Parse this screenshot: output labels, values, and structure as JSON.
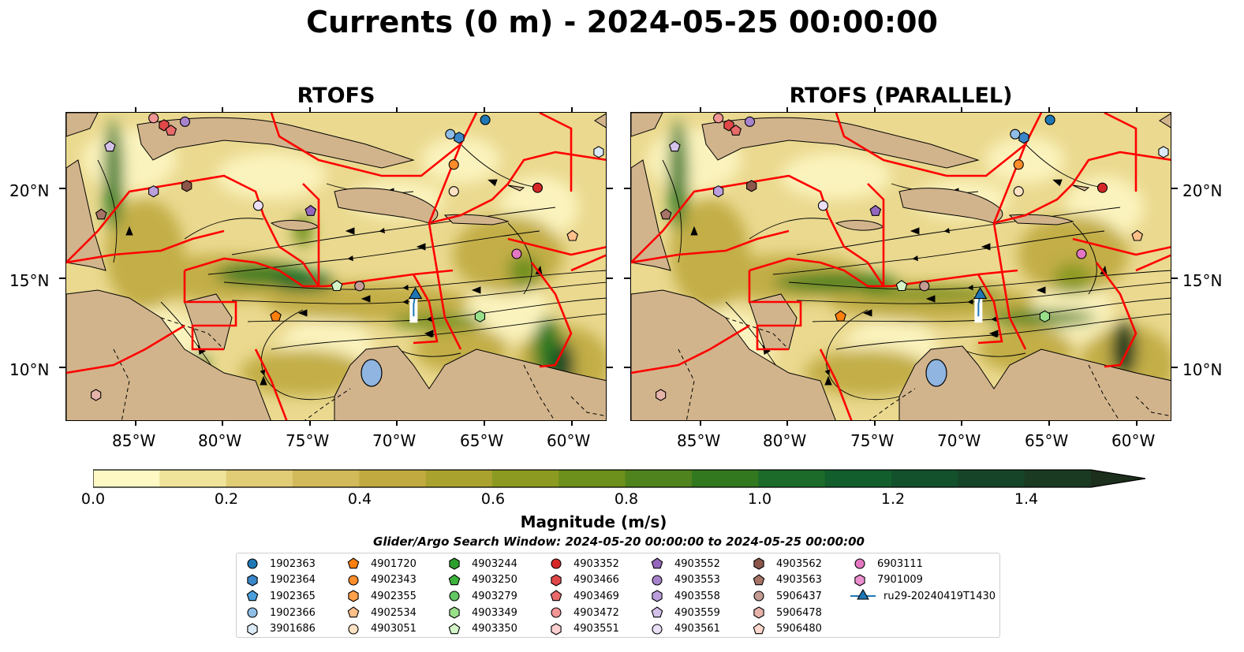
{
  "title": "Currents (0 m) - 2024-05-25 00:00:00",
  "panels": [
    {
      "title": "RTOFS"
    },
    {
      "title": "RTOFS (PARALLEL)"
    }
  ],
  "map_extent": {
    "lon": [
      -89,
      -58
    ],
    "lat": [
      7,
      24.3
    ]
  },
  "lat_labels": [
    "20°N",
    "15°N",
    "10°N"
  ],
  "lon_labels": [
    "85°W",
    "80°W",
    "75°W",
    "70°W",
    "65°W",
    "60°W"
  ],
  "colorbar": {
    "label": "Magnitude (m/s)",
    "ticks": [
      "0.0",
      "0.2",
      "0.4",
      "0.6",
      "0.8",
      "1.0",
      "1.2",
      "1.4"
    ],
    "range": [
      0,
      1.5
    ],
    "extend": "max",
    "colors": [
      "#fdf8c4",
      "#f0e49b",
      "#e2cd77",
      "#d2b959",
      "#c1ab41",
      "#a9a22f",
      "#8c9a22",
      "#6d8f1c",
      "#4f831d",
      "#32781f",
      "#1d6b2a",
      "#135e2d",
      "#12512c",
      "#164428",
      "#1a3a22",
      "#1c2f1c"
    ]
  },
  "search_window": "Glider/Argo Search Window: 2024-05-20 00:00:00 to 2024-05-25 00:00:00",
  "legend": [
    {
      "label": "1902363",
      "marker": "circle",
      "color": "#1f77b4"
    },
    {
      "label": "1902364",
      "marker": "hexagon",
      "color": "#3a86c8"
    },
    {
      "label": "1902365",
      "marker": "pentagon",
      "color": "#4b9fdc"
    },
    {
      "label": "1902366",
      "marker": "circle",
      "color": "#8fbde6"
    },
    {
      "label": "3901686",
      "marker": "hexagon",
      "color": "#dbeaf7"
    },
    {
      "label": "4901720",
      "marker": "pentagon",
      "color": "#ff7f0e"
    },
    {
      "label": "4902343",
      "marker": "circle",
      "color": "#ff8c2a"
    },
    {
      "label": "4902355",
      "marker": "hexagon",
      "color": "#ffa04a"
    },
    {
      "label": "4902534",
      "marker": "pentagon",
      "color": "#ffc08a"
    },
    {
      "label": "4903051",
      "marker": "circle",
      "color": "#ffe2c4"
    },
    {
      "label": "4903244",
      "marker": "hexagon",
      "color": "#2ca02c"
    },
    {
      "label": "4903250",
      "marker": "pentagon",
      "color": "#3db43d"
    },
    {
      "label": "4903279",
      "marker": "circle",
      "color": "#63c563"
    },
    {
      "label": "4903349",
      "marker": "hexagon",
      "color": "#98df8a"
    },
    {
      "label": "4903350",
      "marker": "pentagon",
      "color": "#d4f5c8"
    },
    {
      "label": "4903352",
      "marker": "circle",
      "color": "#d62728"
    },
    {
      "label": "4903466",
      "marker": "hexagon",
      "color": "#e04848"
    },
    {
      "label": "4903469",
      "marker": "pentagon",
      "color": "#e86a6a"
    },
    {
      "label": "4903472",
      "marker": "circle",
      "color": "#f29595"
    },
    {
      "label": "4903551",
      "marker": "hexagon",
      "color": "#fcd0d0"
    },
    {
      "label": "4903552",
      "marker": "pentagon",
      "color": "#9467bd"
    },
    {
      "label": "4903553",
      "marker": "circle",
      "color": "#a783cc"
    },
    {
      "label": "4903558",
      "marker": "hexagon",
      "color": "#bb9fdb"
    },
    {
      "label": "4903559",
      "marker": "pentagon",
      "color": "#d4c1ea"
    },
    {
      "label": "4903561",
      "marker": "circle",
      "color": "#eadff7"
    },
    {
      "label": "4903562",
      "marker": "hexagon",
      "color": "#8c564b"
    },
    {
      "label": "4903563",
      "marker": "pentagon",
      "color": "#a67466"
    },
    {
      "label": "5906437",
      "marker": "circle",
      "color": "#c49c94"
    },
    {
      "label": "5906478",
      "marker": "hexagon",
      "color": "#e6b3aa"
    },
    {
      "label": "5906480",
      "marker": "pentagon",
      "color": "#fcd8cc"
    },
    {
      "label": "6903111",
      "marker": "circle",
      "color": "#e377c2"
    },
    {
      "label": "7901009",
      "marker": "hexagon",
      "color": "#ec8fd1"
    },
    {
      "label": "ru29-20240419T1430",
      "marker": "triangle-line",
      "color": "#1f77b4"
    }
  ],
  "floats": [
    {
      "id": "1902363",
      "lon": -65.0,
      "lat": 23.9
    },
    {
      "id": "1902364",
      "lon": -66.5,
      "lat": 22.9
    },
    {
      "id": "1902366",
      "lon": -67.0,
      "lat": 23.1
    },
    {
      "id": "3901686",
      "lon": -58.5,
      "lat": 22.1
    },
    {
      "id": "4902343",
      "lon": -66.8,
      "lat": 21.4
    },
    {
      "id": "4903051",
      "lon": -66.8,
      "lat": 19.9
    },
    {
      "id": "4903352",
      "lon": -62.0,
      "lat": 20.1
    },
    {
      "id": "4903553",
      "lon": -82.2,
      "lat": 23.8
    },
    {
      "id": "4903466",
      "lon": -83.4,
      "lat": 23.6
    },
    {
      "id": "4903469",
      "lon": -83.0,
      "lat": 23.3
    },
    {
      "id": "4903472",
      "lon": -84.0,
      "lat": 24.0
    },
    {
      "id": "4903559",
      "lon": -86.5,
      "lat": 22.4
    },
    {
      "id": "4903558",
      "lon": -84.0,
      "lat": 19.9
    },
    {
      "id": "4903562",
      "lon": -82.1,
      "lat": 20.2
    },
    {
      "id": "4903563",
      "lon": -87.0,
      "lat": 18.6
    },
    {
      "id": "4903561",
      "lon": -78.0,
      "lat": 19.1
    },
    {
      "id": "4903552",
      "lon": -75.0,
      "lat": 18.8
    },
    {
      "id": "4902534",
      "lon": -60.0,
      "lat": 17.4
    },
    {
      "id": "6903111",
      "lon": -63.2,
      "lat": 16.4
    },
    {
      "id": "5906437",
      "lon": -72.2,
      "lat": 14.6
    },
    {
      "id": "4903350",
      "lon": -73.5,
      "lat": 14.6
    },
    {
      "id": "4901720",
      "lon": -77.0,
      "lat": 12.9
    },
    {
      "id": "4903349",
      "lon": -65.3,
      "lat": 12.9
    },
    {
      "id": "5906478",
      "lon": -87.3,
      "lat": 8.5
    }
  ],
  "glider": {
    "id": "ru29-20240419T1430",
    "track": [
      [
        -69.1,
        12.9
      ],
      [
        -69.1,
        13.6
      ],
      [
        -69.0,
        14.1
      ]
    ]
  }
}
